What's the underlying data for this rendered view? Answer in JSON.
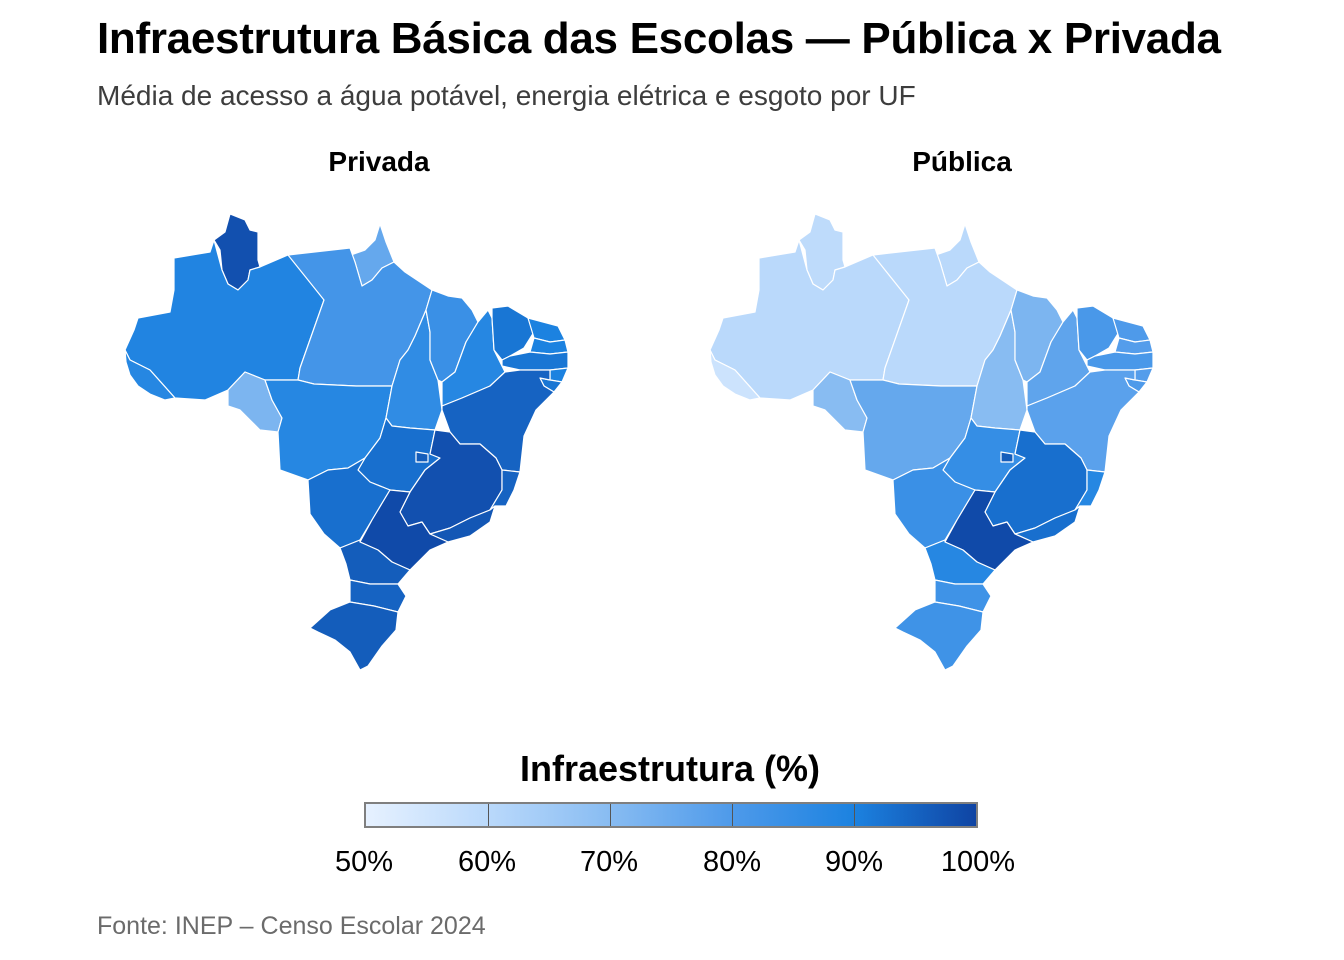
{
  "title": "Infraestrutura Básica das Escolas — Pública x Privada",
  "subtitle": "Média de acesso a água potável, energia elétrica e esgoto por UF",
  "facets": [
    "Privada",
    "Pública"
  ],
  "legend": {
    "title": "Infraestrutura (%)",
    "ticks": [
      "50%",
      "60%",
      "70%",
      "80%",
      "90%",
      "100%"
    ],
    "colors": [
      "#e6f1ff",
      "#bad9fb",
      "#88bcf2",
      "#4e9aea",
      "#1c82e0",
      "#0f44a3"
    ]
  },
  "source": "Fonte: INEP – Censo Escolar 2024",
  "map_data": {
    "privada": {
      "RR": 98,
      "AP": 76,
      "AM": 89,
      "PA": 82,
      "AC": 88,
      "RO": 72,
      "MT": 88,
      "TO": 86,
      "MA": 84,
      "PI": 88,
      "CE": 92,
      "RN": 90,
      "PB": 90,
      "PE": 92,
      "AL": 90,
      "SE": 92,
      "BA": 95,
      "GO": 93,
      "DF": 96,
      "MS": 93,
      "MG": 98,
      "ES": 95,
      "RJ": 97,
      "SP": 99,
      "PR": 96,
      "SC": 95,
      "RS": 96
    },
    "publica": {
      "RR": 59,
      "AP": 60,
      "AM": 60,
      "PA": 60,
      "AC": 56,
      "RO": 70,
      "MT": 76,
      "TO": 70,
      "MA": 72,
      "PI": 77,
      "CE": 81,
      "RN": 80,
      "PB": 79,
      "PE": 81,
      "AL": 79,
      "SE": 80,
      "BA": 78,
      "GO": 85,
      "DF": 96,
      "MS": 84,
      "MG": 93,
      "ES": 88,
      "RJ": 93,
      "SP": 99,
      "PR": 88,
      "SC": 83,
      "RS": 83
    }
  }
}
